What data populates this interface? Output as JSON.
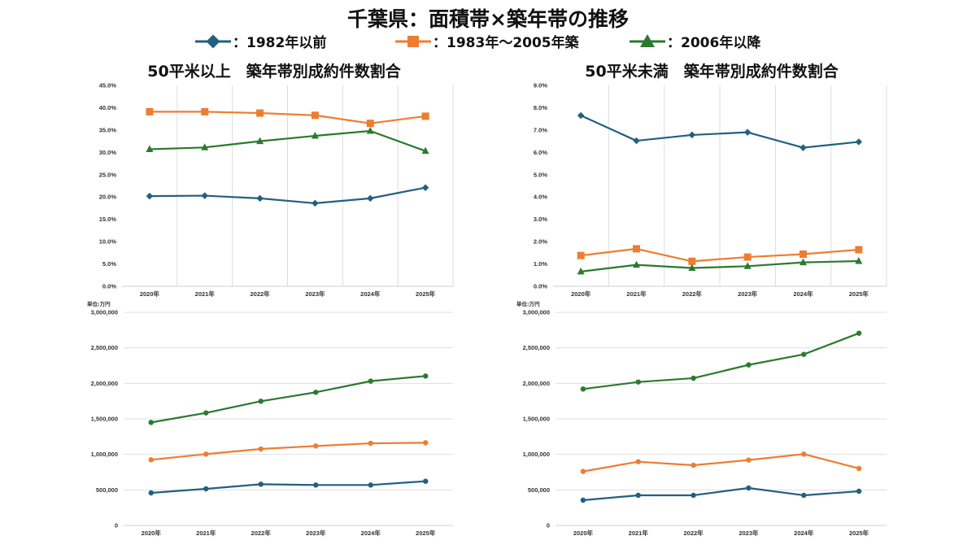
{
  "title": "千葉県：面積帯×築年帯の推移",
  "legend": [
    {
      "label": "：1982年以前",
      "color": "#22607f",
      "marker": "diamond"
    },
    {
      "label": "：1983年～2005年築",
      "color": "#ed7d31",
      "marker": "square"
    },
    {
      "label": "：2006年以降",
      "color": "#2b7a2f",
      "marker": "triangle"
    }
  ],
  "chart_data": [
    {
      "type": "line",
      "title": "50平米以上　築年帯別成約件数割合",
      "categories": [
        "2020年",
        "2021年",
        "2022年",
        "2023年",
        "2024年",
        "2025年"
      ],
      "ylim": [
        0,
        45
      ],
      "yticks": [
        "0.0%",
        "5.0%",
        "10.0%",
        "15.0%",
        "20.0%",
        "25.0%",
        "30.0%",
        "35.0%",
        "40.0%",
        "45.0%"
      ],
      "grid": "vertical",
      "series": [
        {
          "name": "1982年以前",
          "values": [
            20.2,
            20.3,
            19.7,
            18.6,
            19.7,
            22.1
          ]
        },
        {
          "name": "1983年～2005年築",
          "values": [
            39.1,
            39.1,
            38.8,
            38.3,
            36.5,
            38.1
          ]
        },
        {
          "name": "2006年以降",
          "values": [
            30.7,
            31.1,
            32.5,
            33.7,
            34.8,
            30.3
          ]
        }
      ]
    },
    {
      "type": "line",
      "title": "50平米未満　築年帯別成約件数割合",
      "categories": [
        "2020年",
        "2021年",
        "2022年",
        "2023年",
        "2024年",
        "2025年"
      ],
      "ylim": [
        0,
        9
      ],
      "yticks": [
        "0.0%",
        "1.0%",
        "2.0%",
        "3.0%",
        "4.0%",
        "5.0%",
        "6.0%",
        "7.0%",
        "8.0%",
        "9.0%"
      ],
      "grid": "vertical",
      "series": [
        {
          "name": "1982年以前",
          "values": [
            7.65,
            6.52,
            6.78,
            6.9,
            6.21,
            6.47
          ]
        },
        {
          "name": "1983年～2005年築",
          "values": [
            1.38,
            1.68,
            1.12,
            1.31,
            1.44,
            1.64
          ]
        },
        {
          "name": "2006年以降",
          "values": [
            0.66,
            0.96,
            0.82,
            0.9,
            1.07,
            1.13
          ]
        }
      ]
    },
    {
      "type": "line",
      "unit_label": "単位:万円",
      "categories": [
        "2020年",
        "2021年",
        "2022年",
        "2023年",
        "2024年",
        "2025年"
      ],
      "ylim": [
        0,
        3000000
      ],
      "yticks": [
        "0",
        "500,000",
        "1,000,000",
        "1,500,000",
        "2,000,000",
        "2,500,000",
        "3,000,000"
      ],
      "grid": "horizontal",
      "series": [
        {
          "name": "1982年以前",
          "values": [
            458000,
            515000,
            580000,
            569000,
            569000,
            622000
          ]
        },
        {
          "name": "1983年～2005年築",
          "values": [
            924000,
            1004000,
            1076000,
            1118000,
            1156000,
            1164000
          ]
        },
        {
          "name": "2006年以降",
          "values": [
            1450000,
            1584000,
            1748000,
            1874000,
            2031000,
            2103000
          ]
        }
      ]
    },
    {
      "type": "line",
      "unit_label": "単位:万円",
      "categories": [
        "2020年",
        "2021年",
        "2022年",
        "2023年",
        "2024年",
        "2025年"
      ],
      "ylim": [
        0,
        3000000
      ],
      "yticks": [
        "0",
        "500,000",
        "1,000,000",
        "1,500,000",
        "2,000,000",
        "2,500,000",
        "3,000,000"
      ],
      "grid": "horizontal",
      "series": [
        {
          "name": "1982年以前",
          "values": [
            355000,
            424000,
            424000,
            527000,
            424000,
            481000
          ]
        },
        {
          "name": "1983年～2005年築",
          "values": [
            760000,
            897000,
            847000,
            920000,
            1004000,
            802000
          ]
        },
        {
          "name": "2006年以降",
          "values": [
            1920000,
            2019000,
            2073000,
            2260000,
            2408000,
            2706000
          ]
        }
      ]
    }
  ]
}
